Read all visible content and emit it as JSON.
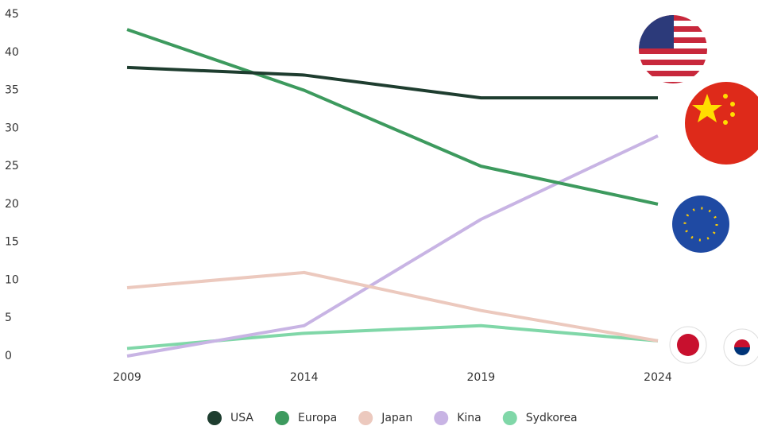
{
  "chart_data": {
    "type": "line",
    "categories": [
      "2009",
      "2014",
      "2019",
      "2024"
    ],
    "series": [
      {
        "name": "USA",
        "color": "#1e3d2f",
        "values": [
          38,
          37,
          34,
          34
        ]
      },
      {
        "name": "Europa",
        "color": "#3d9a5e",
        "values": [
          43,
          35,
          25,
          20
        ]
      },
      {
        "name": "Japan",
        "color": "#ecc9be",
        "values": [
          9,
          11,
          6,
          2
        ]
      },
      {
        "name": "Kina",
        "color": "#c8b4e4",
        "values": [
          0,
          4,
          18,
          29
        ]
      },
      {
        "name": "Sydkorea",
        "color": "#80d7a8",
        "values": [
          1,
          3,
          4,
          2
        ]
      }
    ],
    "ylim": [
      0,
      45
    ],
    "yticks": [
      0,
      5,
      10,
      15,
      20,
      25,
      30,
      35,
      40,
      45
    ],
    "grid": false
  }
}
